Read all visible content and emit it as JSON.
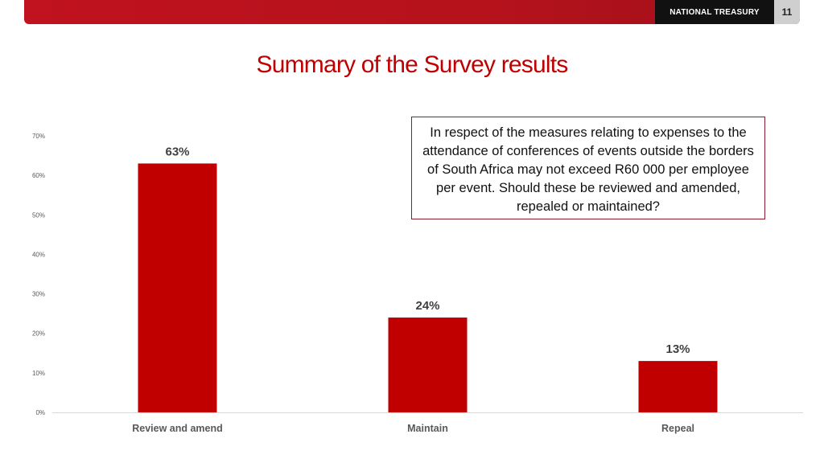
{
  "header": {
    "brand": "NATIONAL TREASURY",
    "page_number": "11",
    "accent_color": "#c0121f"
  },
  "title": "Summary of the Survey results",
  "question": "In respect of the measures relating to expenses to the attendance of conferences of events outside the borders of South Africa may not exceed R60 000 per employee per event. Should these be reviewed and amended, repealed or maintained?",
  "chart_data": {
    "type": "bar",
    "categories": [
      "Review and amend",
      "Maintain",
      "Repeal"
    ],
    "values": [
      63,
      24,
      13
    ],
    "data_labels": [
      "63%",
      "24%",
      "13%"
    ],
    "ylim": [
      0,
      70
    ],
    "yticks": [
      0,
      10,
      20,
      30,
      40,
      50,
      60,
      70
    ],
    "ytick_labels": [
      "0%",
      "10%",
      "20%",
      "30%",
      "40%",
      "50%",
      "60%",
      "70%"
    ],
    "bar_color": "#c00000",
    "grid": false,
    "legend": "none"
  }
}
